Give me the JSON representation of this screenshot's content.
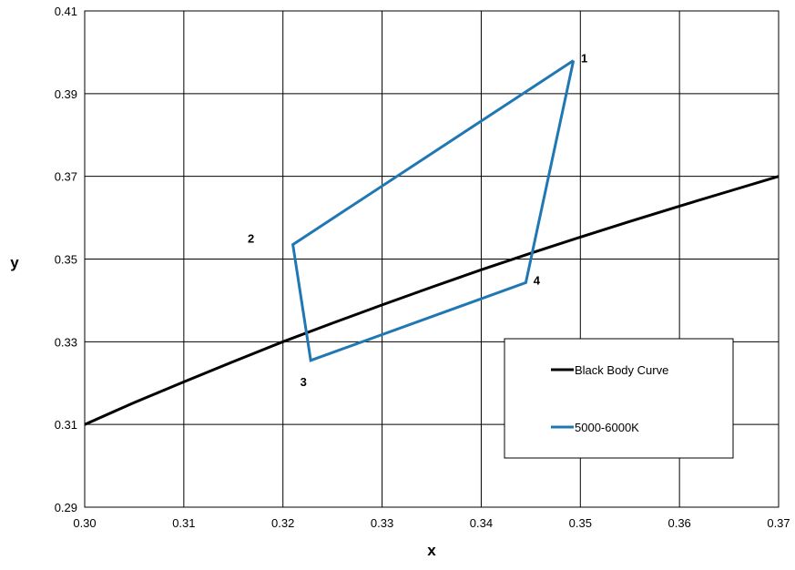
{
  "chart_data": {
    "type": "line",
    "xlabel": "x",
    "ylabel": "y",
    "xlim": [
      0.3,
      0.37
    ],
    "ylim": [
      0.29,
      0.41
    ],
    "xticks": [
      "0.30",
      "0.31",
      "0.32",
      "0.33",
      "0.34",
      "0.35",
      "0.36",
      "0.37"
    ],
    "yticks": [
      "0.29",
      "0.31",
      "0.33",
      "0.35",
      "0.37",
      "0.39",
      "0.41"
    ],
    "grid": true,
    "legend": "lower-right",
    "series": [
      {
        "name": "Black Body Curve",
        "color": "#000000",
        "x": [
          0.3,
          0.305,
          0.31,
          0.315,
          0.32,
          0.325,
          0.33,
          0.335,
          0.34,
          0.345,
          0.35,
          0.355,
          0.36,
          0.365,
          0.37
        ],
        "y": [
          0.31,
          0.3153,
          0.3203,
          0.3252,
          0.33,
          0.3345,
          0.3389,
          0.3432,
          0.3474,
          0.3514,
          0.3553,
          0.3591,
          0.3628,
          0.3664,
          0.37
        ]
      },
      {
        "name": "5000-6000K",
        "color": "#1f77b4",
        "x": [
          0.3493,
          0.321,
          0.3228,
          0.3445,
          0.3493
        ],
        "y": [
          0.398,
          0.3535,
          0.3255,
          0.3443,
          0.398
        ]
      }
    ],
    "vertex_labels": [
      {
        "text": "1",
        "x": 0.3493,
        "y": 0.398
      },
      {
        "text": "2",
        "x": 0.321,
        "y": 0.3535
      },
      {
        "text": "3",
        "x": 0.3228,
        "y": 0.3255
      },
      {
        "text": "4",
        "x": 0.3445,
        "y": 0.3443
      }
    ]
  }
}
